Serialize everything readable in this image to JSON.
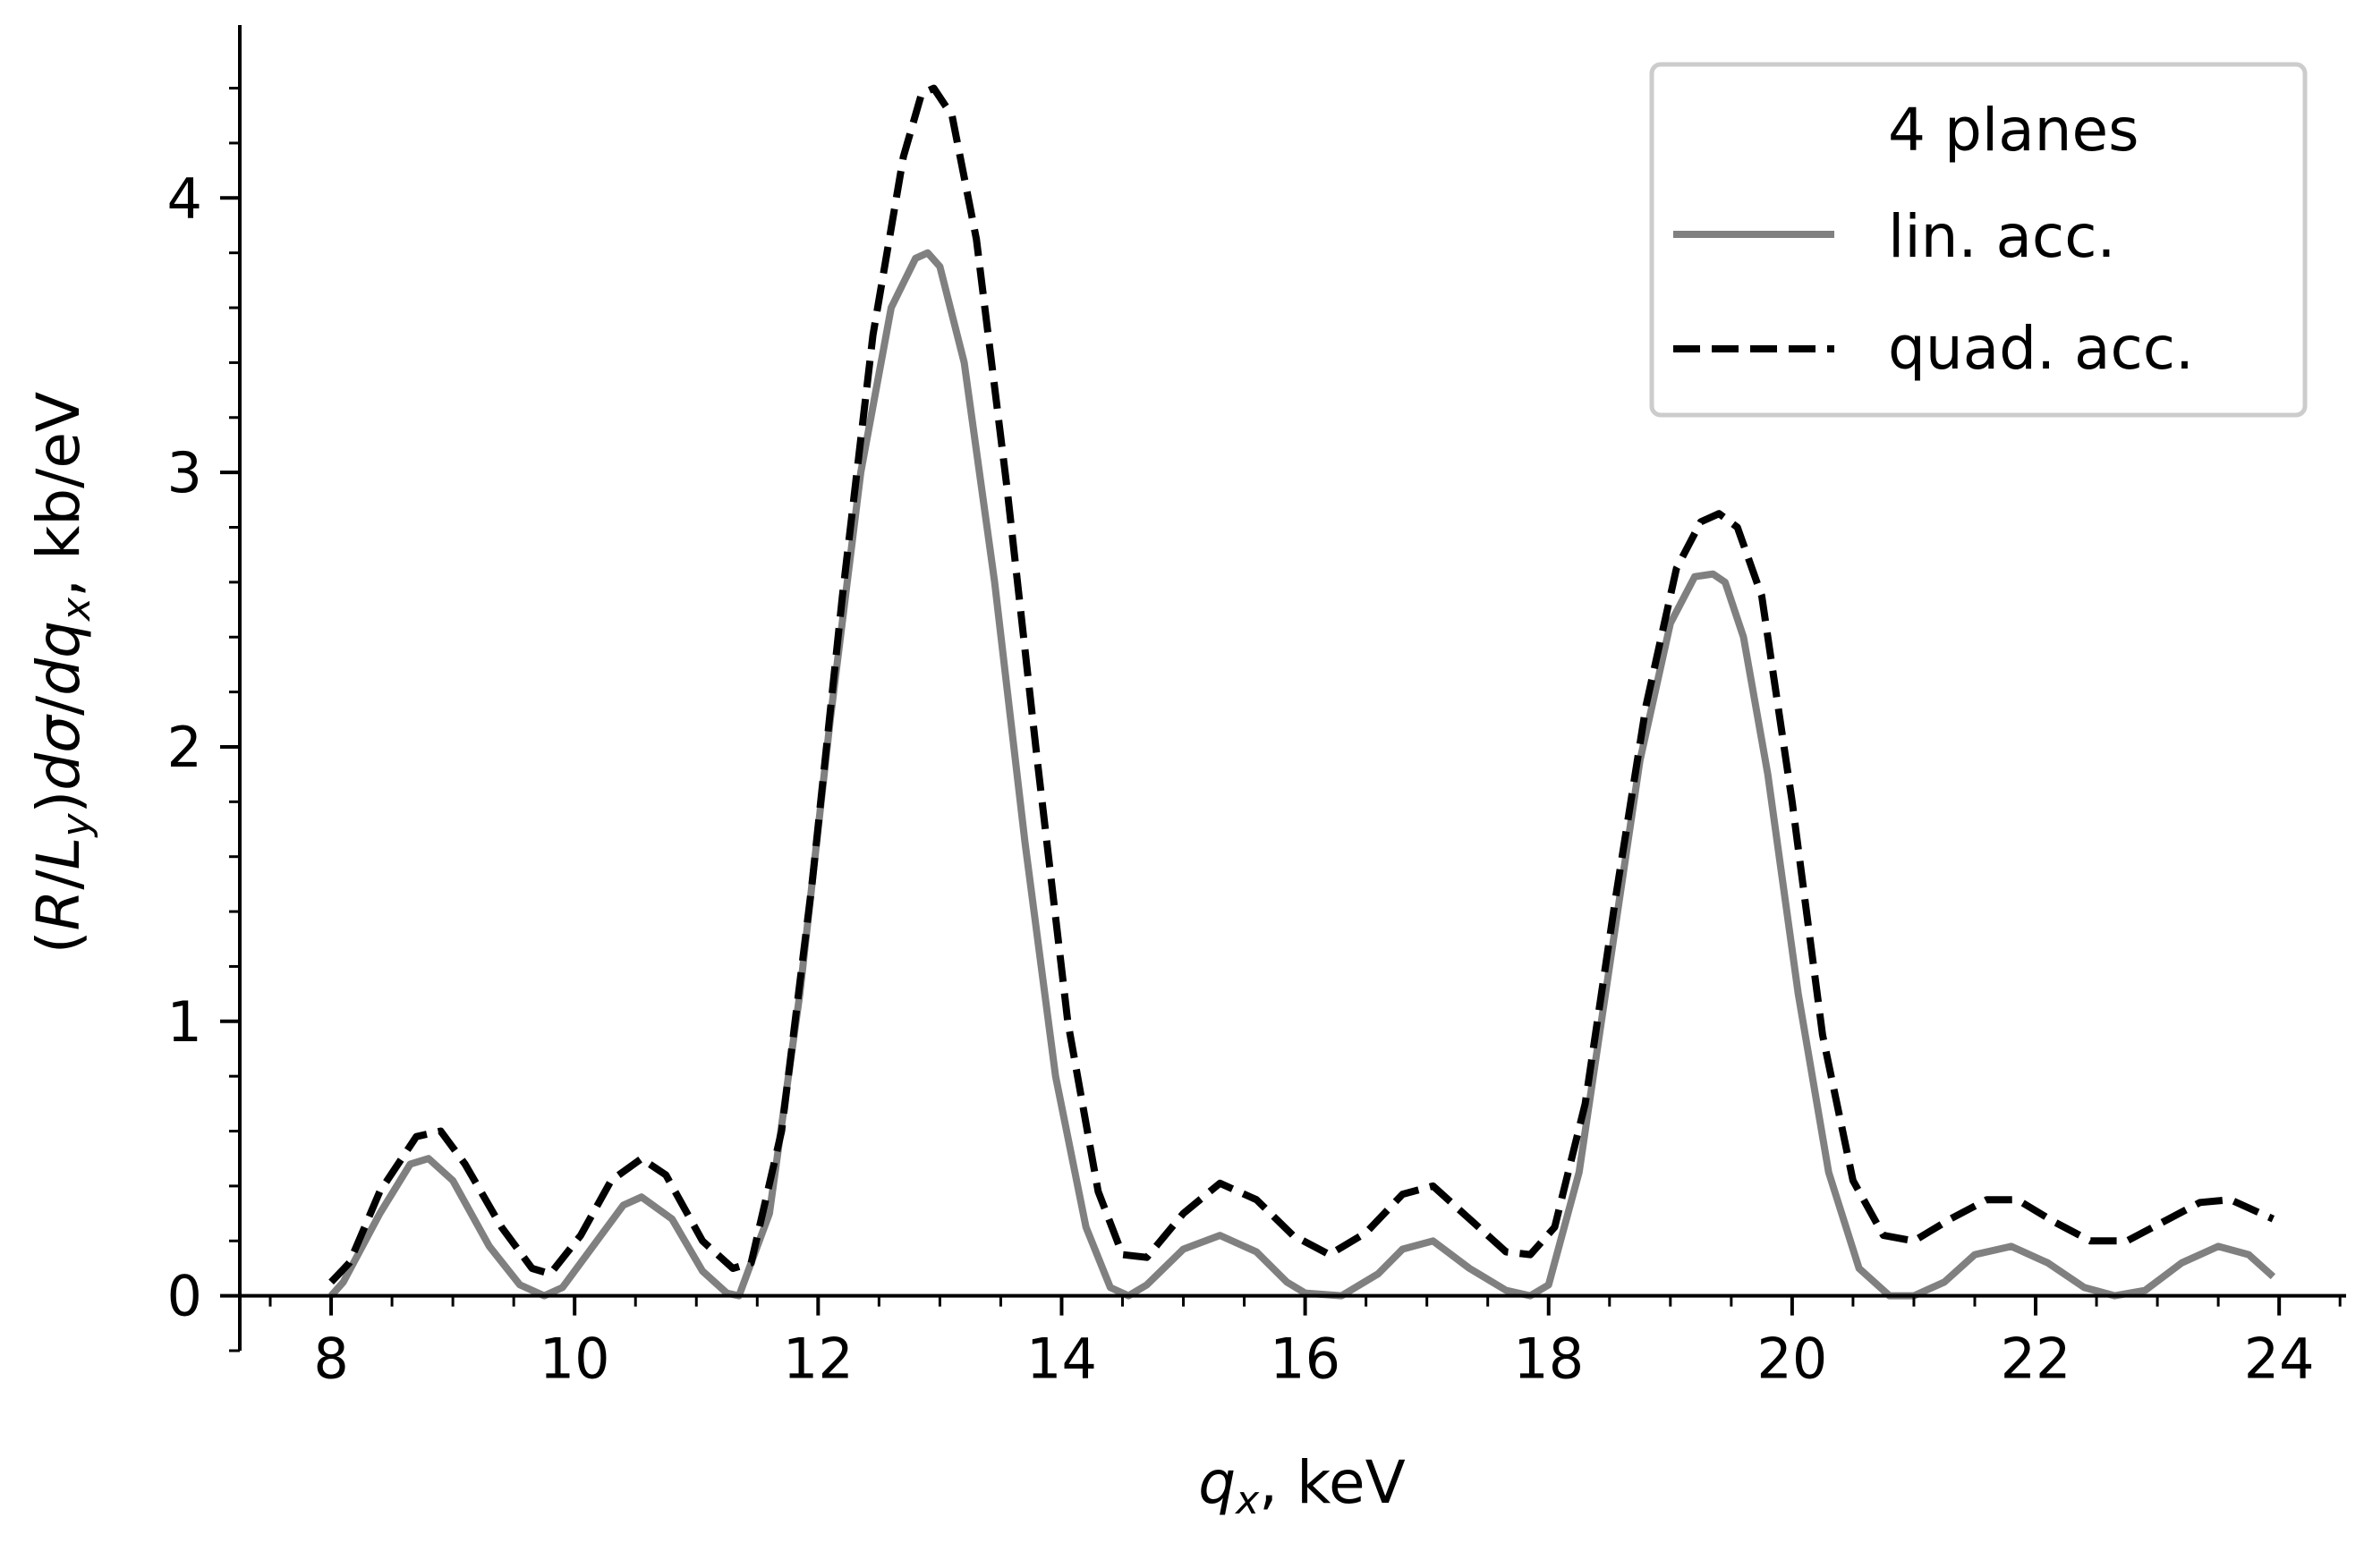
{
  "chart_data": {
    "type": "line",
    "title": "",
    "xlabel": {
      "var": "q",
      "sub": "x",
      "unit": ", keV"
    },
    "ylabel": {
      "pre": "(",
      "R": "R",
      "slash": "/",
      "L": "L",
      "Lsub": "y",
      "mid": ")",
      "d1": "d",
      "sigma": "σ",
      "slash2": "/",
      "d2": "d",
      "q": "q",
      "qsub": "x",
      "unit": ", kb/eV"
    },
    "xlim": [
      7.25,
      24.55
    ],
    "ylim": [
      -0.2,
      4.63
    ],
    "xticks": [
      8,
      10,
      12,
      14,
      16,
      18,
      20,
      22,
      24
    ],
    "yticks": [
      0,
      1,
      2,
      3,
      4
    ],
    "xtick_labels": [
      "8",
      "10",
      "12",
      "14",
      "16",
      "18",
      "20",
      "22",
      "24"
    ],
    "ytick_labels": [
      "0",
      "1",
      "2",
      "3",
      "4"
    ],
    "legend": {
      "placement": "top-right",
      "title": "4 planes",
      "entries": [
        "lin. acc.",
        "quad. acc."
      ]
    },
    "grid": false,
    "series": [
      {
        "name": "lin. acc.",
        "color": "#808080",
        "style": "solid",
        "x": [
          8.0,
          8.1,
          8.4,
          8.65,
          8.8,
          9.0,
          9.3,
          9.55,
          9.75,
          9.9,
          10.15,
          10.4,
          10.55,
          10.8,
          11.05,
          11.25,
          11.35,
          11.6,
          11.85,
          12.1,
          12.35,
          12.6,
          12.8,
          12.9,
          13.0,
          13.2,
          13.45,
          13.7,
          13.95,
          14.2,
          14.4,
          14.55,
          14.7,
          15.0,
          15.3,
          15.6,
          15.85,
          16.0,
          16.3,
          16.6,
          16.8,
          17.05,
          17.35,
          17.65,
          17.85,
          18.0,
          18.25,
          18.5,
          18.75,
          19.0,
          19.2,
          19.35,
          19.45,
          19.6,
          19.8,
          20.05,
          20.3,
          20.55,
          20.8,
          21.0,
          21.25,
          21.5,
          21.8,
          22.1,
          22.4,
          22.65,
          22.9,
          23.2,
          23.5,
          23.75,
          23.95
        ],
        "y": [
          0.0,
          0.05,
          0.3,
          0.48,
          0.5,
          0.42,
          0.18,
          0.04,
          0.0,
          0.03,
          0.18,
          0.33,
          0.36,
          0.28,
          0.09,
          0.01,
          0.0,
          0.3,
          1.1,
          2.1,
          3.0,
          3.6,
          3.78,
          3.8,
          3.75,
          3.4,
          2.6,
          1.65,
          0.8,
          0.25,
          0.03,
          0.0,
          0.04,
          0.17,
          0.22,
          0.16,
          0.05,
          0.01,
          0.0,
          0.08,
          0.17,
          0.2,
          0.1,
          0.02,
          0.0,
          0.04,
          0.45,
          1.2,
          1.95,
          2.45,
          2.62,
          2.63,
          2.6,
          2.4,
          1.9,
          1.1,
          0.45,
          0.1,
          0.0,
          0.0,
          0.05,
          0.15,
          0.18,
          0.12,
          0.03,
          0.0,
          0.02,
          0.12,
          0.18,
          0.15,
          0.07
        ]
      },
      {
        "name": "quad. acc.",
        "color": "#000000",
        "style": "dashed",
        "x": [
          8.0,
          8.15,
          8.4,
          8.7,
          8.9,
          9.1,
          9.4,
          9.65,
          9.8,
          10.05,
          10.3,
          10.55,
          10.75,
          11.05,
          11.3,
          11.45,
          11.7,
          11.95,
          12.2,
          12.45,
          12.7,
          12.85,
          12.95,
          13.1,
          13.3,
          13.55,
          13.8,
          14.05,
          14.3,
          14.5,
          14.7,
          15.0,
          15.3,
          15.6,
          15.9,
          16.2,
          16.5,
          16.8,
          17.05,
          17.35,
          17.65,
          17.85,
          18.05,
          18.3,
          18.55,
          18.8,
          19.05,
          19.25,
          19.4,
          19.55,
          19.75,
          20.0,
          20.25,
          20.5,
          20.75,
          21.0,
          21.3,
          21.6,
          21.85,
          22.15,
          22.45,
          22.75,
          23.05,
          23.35,
          23.6,
          23.95
        ],
        "y": [
          0.05,
          0.12,
          0.38,
          0.58,
          0.6,
          0.48,
          0.25,
          0.1,
          0.08,
          0.22,
          0.42,
          0.5,
          0.44,
          0.2,
          0.1,
          0.12,
          0.6,
          1.5,
          2.55,
          3.5,
          4.15,
          4.38,
          4.4,
          4.3,
          3.85,
          2.95,
          1.95,
          1.0,
          0.38,
          0.15,
          0.14,
          0.3,
          0.41,
          0.35,
          0.22,
          0.15,
          0.23,
          0.37,
          0.4,
          0.28,
          0.16,
          0.15,
          0.25,
          0.7,
          1.45,
          2.15,
          2.65,
          2.82,
          2.85,
          2.8,
          2.55,
          1.8,
          0.95,
          0.42,
          0.22,
          0.2,
          0.28,
          0.35,
          0.35,
          0.27,
          0.2,
          0.2,
          0.27,
          0.34,
          0.35,
          0.28
        ]
      }
    ]
  }
}
